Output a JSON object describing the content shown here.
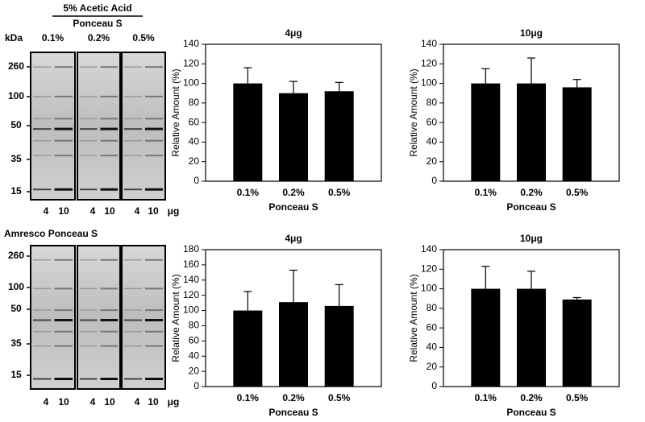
{
  "chart_data": [
    {
      "type": "bar",
      "title": "4μg",
      "ylabel": "Relative Amount (%)",
      "xlabel": "Ponceau S",
      "categories": [
        "0.1%",
        "0.2%",
        "0.5%"
      ],
      "values": [
        100,
        90,
        92
      ],
      "errors": [
        16,
        12,
        9
      ],
      "color": "#000000",
      "ylim": [
        0,
        140
      ],
      "yticks": [
        0,
        20,
        40,
        60,
        80,
        100,
        120,
        140
      ]
    },
    {
      "type": "bar",
      "title": "10μg",
      "ylabel": "Relative Amount (%)",
      "xlabel": "Ponceau S",
      "categories": [
        "0.1%",
        "0.2%",
        "0.5%"
      ],
      "values": [
        100,
        100,
        96
      ],
      "errors": [
        15,
        26,
        8
      ],
      "color": "#000000",
      "ylim": [
        0,
        140
      ],
      "yticks": [
        0,
        20,
        40,
        60,
        80,
        100,
        120,
        140
      ]
    },
    {
      "type": "bar",
      "title": "4μg",
      "ylabel": "Relative Amount (%)",
      "xlabel": "Ponceau S",
      "categories": [
        "0.1%",
        "0.2%",
        "0.5%"
      ],
      "values": [
        100,
        111,
        106
      ],
      "errors": [
        25,
        42,
        28
      ],
      "color": "#000000",
      "ylim": [
        0,
        180
      ],
      "yticks": [
        0,
        20,
        40,
        60,
        80,
        100,
        120,
        140,
        160,
        180
      ]
    },
    {
      "type": "bar",
      "title": "10μg",
      "ylabel": "Relative Amount (%)",
      "xlabel": "Ponceau S",
      "categories": [
        "0.1%",
        "0.2%",
        "0.5%"
      ],
      "values": [
        100,
        100,
        89
      ],
      "errors": [
        23,
        18,
        2
      ],
      "color": "#000000",
      "ylim": [
        0,
        140
      ],
      "yticks": [
        0,
        20,
        40,
        60,
        80,
        100,
        120,
        140
      ]
    }
  ],
  "blots": [
    {
      "header": "5% Acetic Acid",
      "stain": "Ponceau S",
      "unit_label": "kDa",
      "concentrations": [
        "0.1%",
        "0.2%",
        "0.5%"
      ],
      "markers": [
        260,
        100,
        50,
        35,
        15
      ],
      "lanes": [
        4,
        10,
        4,
        10,
        4,
        10
      ],
      "amount_unit": "μg"
    },
    {
      "stain": "Amresco Ponceau S",
      "markers": [
        260,
        100,
        50,
        35,
        15
      ],
      "lanes": [
        4,
        10,
        4,
        10,
        4,
        10
      ],
      "amount_unit": "μg"
    }
  ]
}
